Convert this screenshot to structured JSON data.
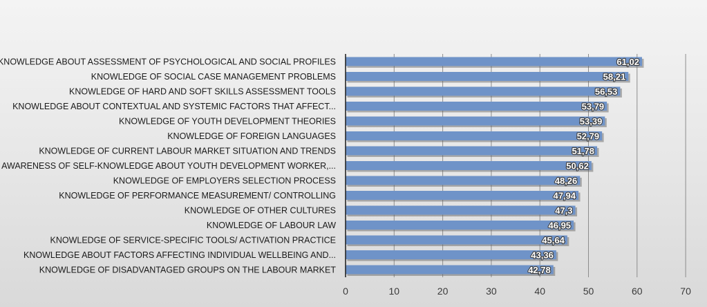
{
  "chart_data": {
    "type": "bar",
    "orientation": "horizontal",
    "title": "",
    "xlabel": "",
    "ylabel": "",
    "xlim": [
      0,
      70
    ],
    "ticks": [
      "0",
      "10",
      "20",
      "30",
      "40",
      "50",
      "60",
      "70"
    ],
    "tick_values": [
      0,
      10,
      20,
      30,
      40,
      50,
      60,
      70
    ],
    "grid": "vertical",
    "bar_color": "#6f93c8",
    "categories": [
      "KNOWLEDGE ABOUT ASSESSMENT OF PSYCHOLOGICAL AND SOCIAL PROFILES",
      "KNOWLEDGE OF SOCIAL CASE MANAGEMENT PROBLEMS",
      "KNOWLEDGE OF HARD AND SOFT SKILLS ASSESSMENT TOOLS",
      "KNOWLEDGE ABOUT CONTEXTUAL AND SYSTEMIC FACTORS THAT AFFECT...",
      "KNOWLEDGE OF YOUTH DEVELOPMENT THEORIES",
      "KNOWLEDGE OF FOREIGN LANGUAGES",
      "KNOWLEDGE OF CURRENT LABOUR MARKET SITUATION AND TRENDS",
      "AWARENESS OF SELF-KNOWLEDGE ABOUT YOUTH DEVELOPMENT WORKER,...",
      "KNOWLEDGE OF EMPLOYERS SELECTION PROCESS",
      "KNOWLEDGE OF PERFORMANCE MEASUREMENT/ CONTROLLING",
      "KNOWLEDGE OF OTHER CULTURES",
      "KNOWLEDGE OF LABOUR LAW",
      "KNOWLEDGE OF SERVICE-SPECIFIC TOOLS/ ACTIVATION PRACTICE",
      "KNOWLEDGE ABOUT FACTORS AFFECTING INDIVIDUAL WELLBEING AND...",
      "KNOWLEDGE OF DISADVANTAGED GROUPS ON THE LABOUR MARKET"
    ],
    "values": [
      61.02,
      58.21,
      56.53,
      53.79,
      53.39,
      52.79,
      51.78,
      50.62,
      48.26,
      47.94,
      47.3,
      46.95,
      45.64,
      43.36,
      42.78
    ],
    "value_labels": [
      "61,02",
      "58,21",
      "56,53",
      "53,79",
      "53,39",
      "52,79",
      "51,78",
      "50,62",
      "48,26",
      "47,94",
      "47,3",
      "46,95",
      "45,64",
      "43,36",
      "42,78"
    ]
  }
}
